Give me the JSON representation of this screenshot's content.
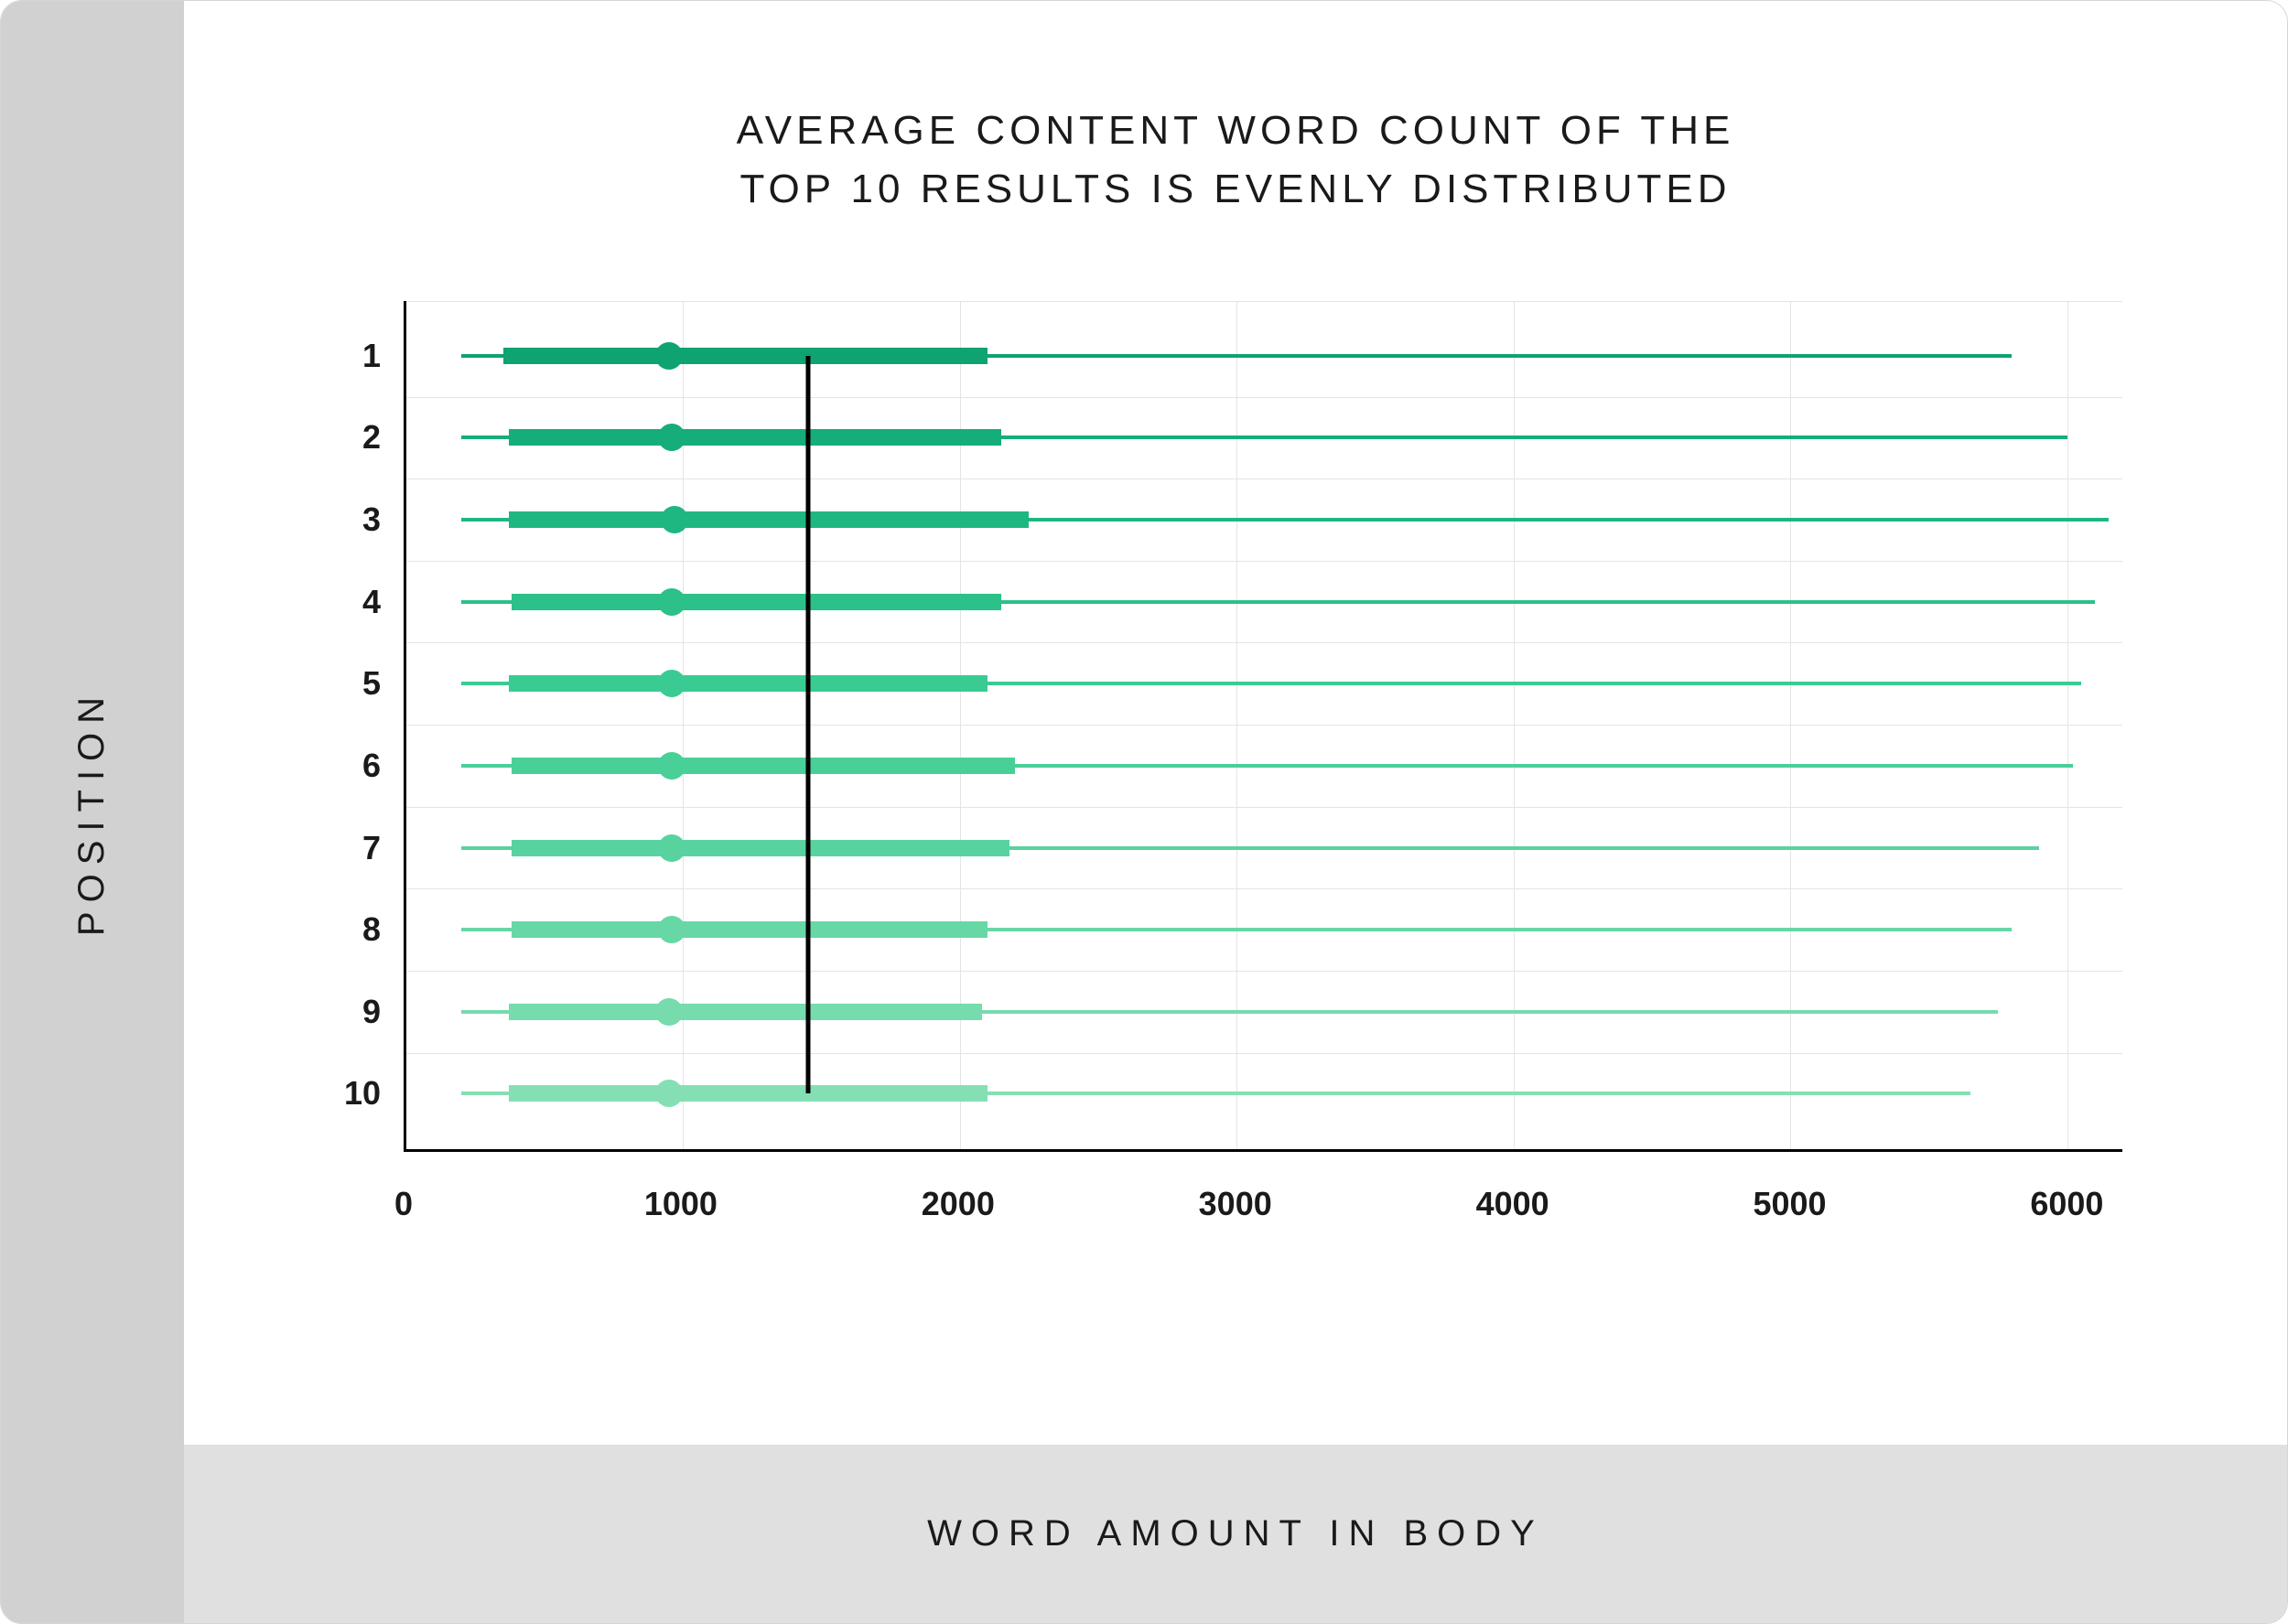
{
  "chart": {
    "type": "boxplot-horizontal",
    "title_line1": "AVERAGE CONTENT WORD COUNT OF THE",
    "title_line2": "TOP 10 RESULTS IS EVENLY DISTRIBUTED",
    "ylabel": "POSITION",
    "xlabel": "WORD AMOUNT IN BODY",
    "xlim": [
      0,
      6200
    ],
    "xtick_values": [
      0,
      1000,
      2000,
      3000,
      4000,
      5000,
      6000
    ],
    "xtick_labels": [
      "0",
      "1000",
      "2000",
      "3000",
      "4000",
      "5000",
      "6000"
    ],
    "grid_color": "#e4e4e4",
    "axis_color": "#000000",
    "background_color": "#ffffff",
    "reference_line_x": 1450,
    "reference_line_color": "#000000",
    "colors": [
      "#0ea371",
      "#15ad79",
      "#1fb781",
      "#2bc189",
      "#3acb92",
      "#49cf98",
      "#58d39f",
      "#67d7a6",
      "#76dbad",
      "#85dfb4"
    ],
    "rows": [
      {
        "label": "1",
        "whisker_lo": 200,
        "box_lo": 350,
        "median": 950,
        "box_hi": 2100,
        "whisker_hi": 5800
      },
      {
        "label": "2",
        "whisker_lo": 200,
        "box_lo": 370,
        "median": 960,
        "box_hi": 2150,
        "whisker_hi": 6000
      },
      {
        "label": "3",
        "whisker_lo": 200,
        "box_lo": 370,
        "median": 970,
        "box_hi": 2250,
        "whisker_hi": 6150
      },
      {
        "label": "4",
        "whisker_lo": 200,
        "box_lo": 380,
        "median": 960,
        "box_hi": 2150,
        "whisker_hi": 6100
      },
      {
        "label": "5",
        "whisker_lo": 200,
        "box_lo": 370,
        "median": 960,
        "box_hi": 2100,
        "whisker_hi": 6050
      },
      {
        "label": "6",
        "whisker_lo": 200,
        "box_lo": 380,
        "median": 960,
        "box_hi": 2200,
        "whisker_hi": 6020
      },
      {
        "label": "7",
        "whisker_lo": 200,
        "box_lo": 380,
        "median": 960,
        "box_hi": 2180,
        "whisker_hi": 5900
      },
      {
        "label": "8",
        "whisker_lo": 200,
        "box_lo": 380,
        "median": 960,
        "box_hi": 2100,
        "whisker_hi": 5800
      },
      {
        "label": "9",
        "whisker_lo": 200,
        "box_lo": 370,
        "median": 950,
        "box_hi": 2080,
        "whisker_hi": 5750
      },
      {
        "label": "10",
        "whisker_lo": 200,
        "box_lo": 370,
        "median": 950,
        "box_hi": 2100,
        "whisker_hi": 5650
      }
    ],
    "title_fontsize": 44,
    "axis_label_fontsize": 40,
    "tick_fontsize": 36
  },
  "layout": {
    "left_rail_bg": "#d1d1d1",
    "bottom_rail_bg": "#e0e0e0"
  }
}
